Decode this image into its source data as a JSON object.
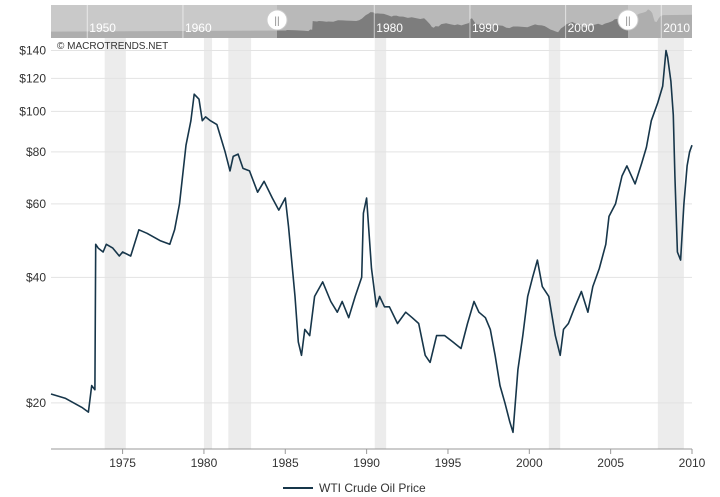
{
  "watermark": "© MACROTRENDS.NET",
  "navigator": {
    "labels": [
      "1950",
      "1960",
      "1980",
      "1990",
      "2000",
      "2010"
    ],
    "handle_glyph": "||"
  },
  "colors": {
    "line": "#17364a",
    "recession": "#ececec",
    "grid": "#e3e3e3",
    "navigator_bg": "#b9b9b9",
    "navigator_fill": "#7d7d7d",
    "navigator_mask": "#d7d7d7"
  },
  "chart_data": {
    "type": "line",
    "title": "",
    "xlabel": "",
    "ylabel": "",
    "y_scale": "log",
    "xlim": [
      1970.6,
      2010
    ],
    "ylim": [
      15.5,
      150
    ],
    "x_ticks": [
      1975,
      1980,
      1985,
      1990,
      1995,
      2000,
      2005,
      2010
    ],
    "x_tick_labels": [
      "1975",
      "1980",
      "1985",
      "1990",
      "1995",
      "2000",
      "2005",
      "2010"
    ],
    "y_ticks": [
      20,
      40,
      60,
      80,
      100,
      120,
      140
    ],
    "y_tick_labels": [
      "$20",
      "$40",
      "$60",
      "$80",
      "$100",
      "$120",
      "$140"
    ],
    "grid": true,
    "legend": "bottom-center",
    "recessions": [
      [
        1973.9,
        1975.2
      ],
      [
        1980.0,
        1980.5
      ],
      [
        1981.5,
        1982.9
      ],
      [
        1990.5,
        1991.2
      ],
      [
        2001.2,
        2001.9
      ],
      [
        2007.9,
        2009.5
      ]
    ],
    "series": [
      {
        "name": "WTI Crude Oil Price",
        "x": [
          1970.6,
          1971.5,
          1972.5,
          1972.9,
          1973.1,
          1973.3,
          1973.35,
          1973.5,
          1973.8,
          1974.0,
          1974.4,
          1974.8,
          1975.0,
          1975.5,
          1976.0,
          1976.5,
          1976.9,
          1977.3,
          1977.9,
          1978.2,
          1978.5,
          1978.9,
          1979.2,
          1979.4,
          1979.7,
          1979.9,
          1980.1,
          1980.4,
          1980.8,
          1981.3,
          1981.6,
          1981.8,
          1982.1,
          1982.4,
          1982.8,
          1983.3,
          1983.7,
          1984.2,
          1984.6,
          1985.0,
          1985.2,
          1985.6,
          1985.8,
          1986.0,
          1986.2,
          1986.5,
          1986.8,
          1987.3,
          1987.8,
          1988.2,
          1988.5,
          1988.9,
          1989.3,
          1989.7,
          1989.8,
          1990.0,
          1990.3,
          1990.6,
          1990.8,
          1991.1,
          1991.4,
          1991.9,
          1992.4,
          1992.8,
          1993.2,
          1993.6,
          1993.9,
          1994.3,
          1994.8,
          1995.3,
          1995.8,
          1996.2,
          1996.6,
          1996.9,
          1997.3,
          1997.6,
          1997.9,
          1998.2,
          1998.5,
          1998.8,
          1999.0,
          1999.3,
          1999.6,
          1999.9,
          2000.2,
          2000.5,
          2000.8,
          2001.2,
          2001.6,
          2001.9,
          2002.1,
          2002.4,
          2002.8,
          2003.2,
          2003.6,
          2003.9,
          2004.3,
          2004.7,
          2004.9,
          2005.3,
          2005.7,
          2006.0,
          2006.5,
          2006.9,
          2007.2,
          2007.5,
          2007.9,
          2008.2,
          2008.4,
          2008.5,
          2008.7,
          2008.85,
          2008.95,
          2009.1,
          2009.3,
          2009.5,
          2009.7,
          2009.85,
          2010.0
        ],
        "y": [
          21,
          20.5,
          19.5,
          19,
          22,
          21.5,
          48,
          47,
          46,
          48,
          47,
          45,
          46,
          45,
          52,
          51,
          50,
          49,
          48,
          52,
          60,
          83,
          95,
          110,
          107,
          95,
          97,
          95,
          93,
          80,
          72,
          78,
          79,
          73,
          72,
          64,
          68,
          62,
          58,
          62,
          53,
          36,
          28,
          26,
          30,
          29,
          36,
          39,
          35,
          33,
          35,
          32,
          36,
          40,
          57,
          62,
          42,
          34,
          36,
          34,
          34,
          31,
          33,
          32,
          31,
          26,
          25,
          29,
          29,
          28,
          27,
          31,
          35,
          33,
          32,
          30,
          26,
          22,
          20,
          18,
          17,
          24,
          29,
          36,
          40,
          44,
          38,
          36,
          29,
          26,
          30,
          31,
          34,
          37,
          33,
          38,
          42,
          48,
          56,
          60,
          70,
          74,
          67,
          75,
          82,
          95,
          105,
          115,
          140,
          135,
          118,
          98,
          70,
          46,
          44,
          60,
          74,
          80,
          83
        ]
      }
    ]
  }
}
